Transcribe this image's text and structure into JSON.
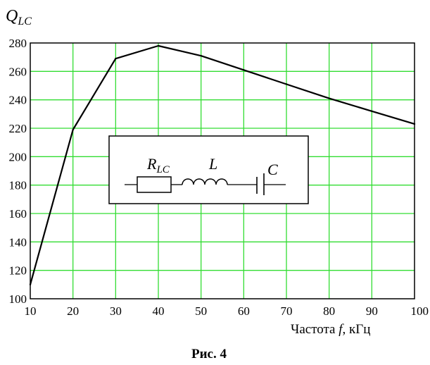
{
  "chart_data": {
    "type": "line",
    "x": [
      10,
      20,
      30,
      40,
      50,
      60,
      70,
      80,
      90,
      100
    ],
    "series": [
      {
        "values": [
          110,
          219,
          269,
          278,
          271,
          261,
          251,
          241,
          232,
          223
        ]
      }
    ],
    "xlim": [
      10,
      100
    ],
    "ylim": [
      100,
      280
    ],
    "xticks": [
      "10",
      "20",
      "30",
      "40",
      "50",
      "60",
      "70",
      "80",
      "90",
      "100"
    ],
    "yticks": [
      "100",
      "120",
      "140",
      "160",
      "180",
      "200",
      "220",
      "240",
      "260",
      "280"
    ],
    "ylabel": {
      "main": "Q",
      "sub": "LC"
    },
    "xlabel": {
      "pre": "Частота ",
      "var": "f",
      "post": ", кГц"
    },
    "caption": "Рис. 4",
    "grid": true,
    "grid_color": "#33dd33",
    "line_color": "#000000",
    "inset": {
      "resistor_label": {
        "main": "R",
        "sub": "LC"
      },
      "inductor_label": "L",
      "capacitor_label": "C"
    }
  }
}
